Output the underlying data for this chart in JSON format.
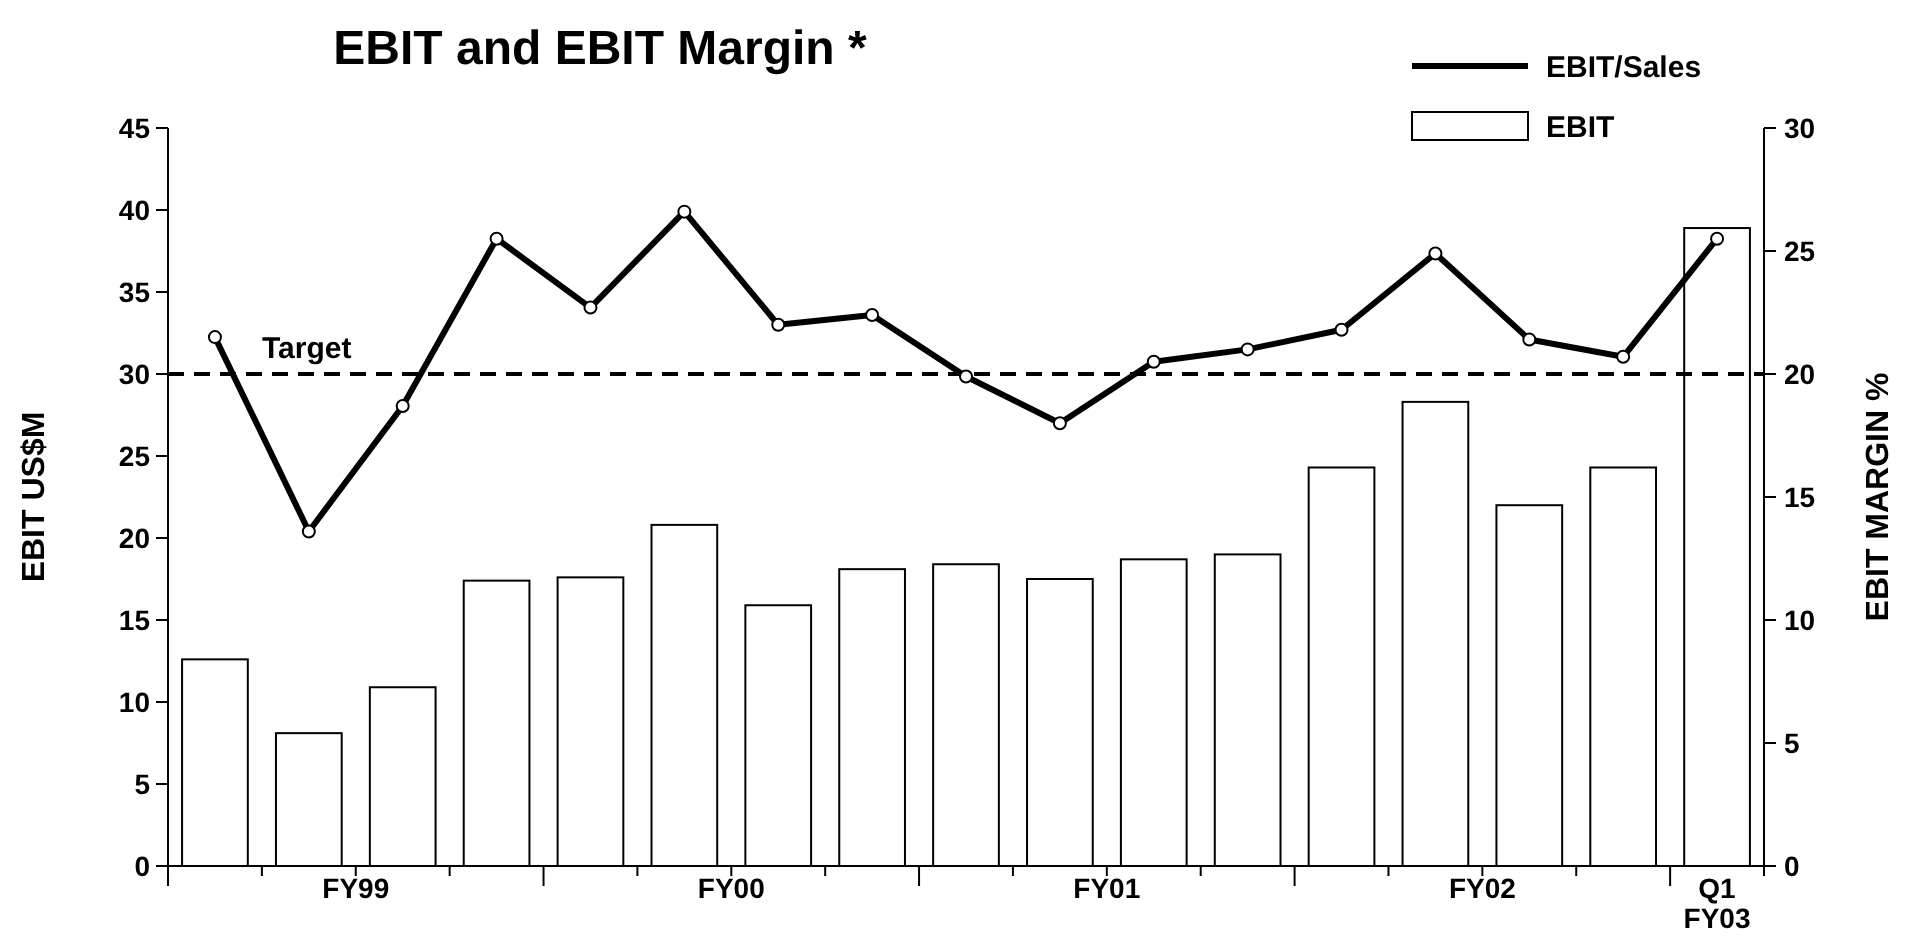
{
  "chart_data": {
    "type": "bar",
    "title": "EBIT and EBIT Margin *",
    "ylabel": "EBIT US$M",
    "y2label": "EBIT MARGIN %",
    "categories": [
      null,
      null,
      null,
      null,
      null,
      null,
      null,
      null,
      null,
      null,
      null,
      null,
      null,
      null,
      null,
      null,
      null
    ],
    "series": [
      {
        "name": "EBIT",
        "color": "#ffffff",
        "values": [
          12.6,
          8.1,
          10.9,
          17.4,
          17.6,
          20.8,
          15.9,
          18.1,
          18.4,
          17.5,
          18.7,
          19.0,
          24.3,
          28.3,
          22.0,
          24.3,
          38.9
        ]
      },
      {
        "name": "EBIT/Sales",
        "type": "line",
        "axis": "y2",
        "color": "#000000",
        "marker": "circle",
        "values": [
          21.5,
          13.6,
          18.7,
          25.5,
          22.7,
          26.6,
          22.0,
          22.4,
          19.9,
          18.0,
          20.5,
          21.0,
          21.8,
          24.9,
          21.4,
          20.7,
          25.5
        ]
      }
    ],
    "ylim": [
      0,
      45
    ],
    "yticks": [
      0,
      5,
      10,
      15,
      20,
      25,
      30,
      35,
      40,
      45
    ],
    "y2lim": [
      0,
      30
    ],
    "y2ticks": [
      0,
      5,
      10,
      15,
      20,
      25,
      30
    ],
    "ref_lines": [
      {
        "axis": "y2",
        "value": 20,
        "label": "Target",
        "color": "#000000",
        "line_style": "dashed"
      }
    ],
    "annotations": [
      "FY99",
      "FY00",
      "FY01",
      "FY02",
      "Q1 FY03"
    ],
    "legend": "top right"
  }
}
